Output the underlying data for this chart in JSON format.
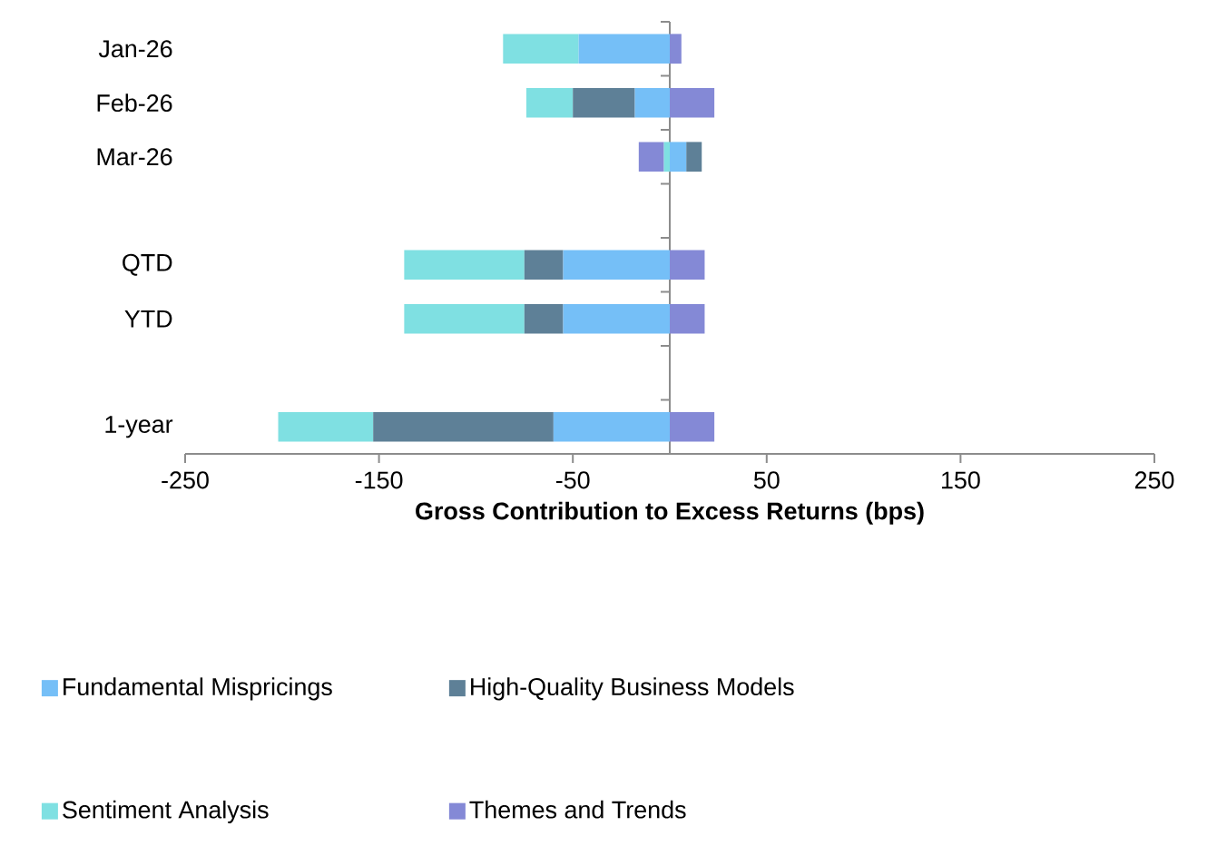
{
  "chart_data": {
    "type": "bar",
    "orientation": "horizontal",
    "stacked": true,
    "categories": [
      "Jan-26",
      "Feb-26",
      "Mar-26",
      null,
      "QTD",
      "YTD",
      null,
      "1-year"
    ],
    "series": [
      {
        "name": "Fundamental Mispricings",
        "color": "#75bff7",
        "values": [
          -47,
          -18,
          8.5,
          null,
          -55,
          -55,
          null,
          -60
        ]
      },
      {
        "name": "High-Quality Business Models",
        "color": "#5e8097",
        "values": [
          0,
          -32,
          8,
          null,
          -20,
          -20,
          null,
          -93
        ]
      },
      {
        "name": "Sentiment Analysis",
        "color": "#7fe0e2",
        "values": [
          -39,
          -24,
          -3,
          null,
          -62,
          -62,
          null,
          -49
        ]
      },
      {
        "name": "Themes and Trends",
        "color": "#8489d6",
        "values": [
          6,
          23,
          -13,
          null,
          18,
          18,
          null,
          23
        ]
      }
    ],
    "xlabel": "Gross Contribution to Excess Returns (bps)",
    "xlim": [
      -250,
      250
    ],
    "xticks": [
      -250,
      -150,
      -50,
      50,
      150,
      250
    ],
    "legend": "bottom"
  }
}
